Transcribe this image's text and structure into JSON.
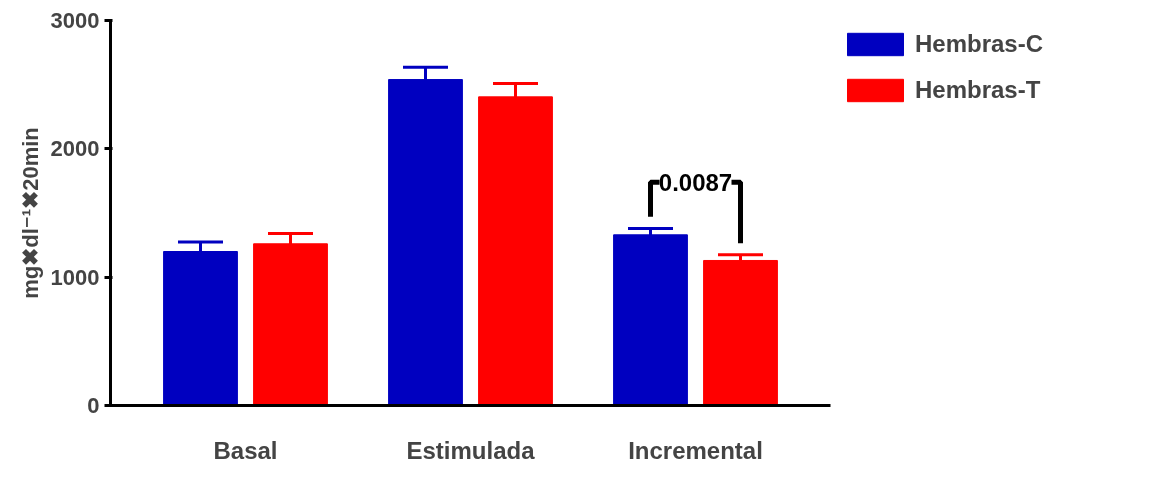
{
  "chart_data": {
    "type": "bar",
    "ylabel": "mg✖dl⁻¹✖20min",
    "categories": [
      "Basal",
      "Estimulada",
      "Incremental"
    ],
    "series": [
      {
        "name": "Hembras-C",
        "color": "#0000c0",
        "values": [
          1200,
          2540,
          1330
        ],
        "errors": [
          75,
          95,
          50
        ]
      },
      {
        "name": "Hembras-T",
        "color": "#ff0000",
        "values": [
          1260,
          2405,
          1130
        ],
        "errors": [
          80,
          105,
          45
        ]
      }
    ],
    "ylim": [
      0,
      3000
    ],
    "yticks": [
      0,
      1000,
      2000,
      3000
    ],
    "grid": false,
    "legend": "top right",
    "annotations": [
      "0.0087"
    ]
  }
}
